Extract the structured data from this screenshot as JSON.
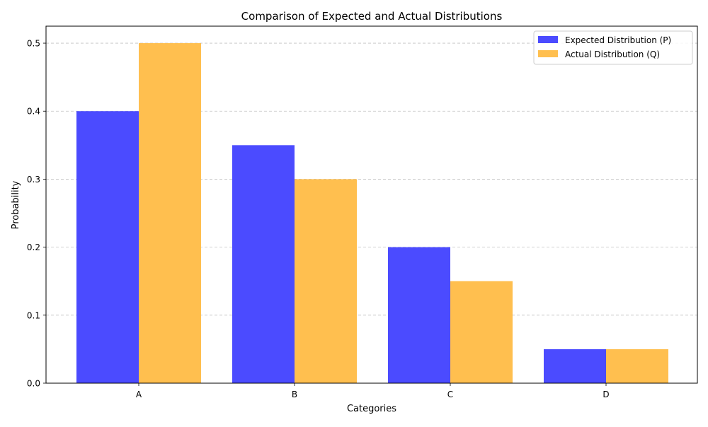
{
  "chart_data": {
    "type": "bar",
    "title": "Comparison of Expected and Actual Distributions",
    "xlabel": "Categories",
    "ylabel": "Probability",
    "categories": [
      "A",
      "B",
      "C",
      "D"
    ],
    "series": [
      {
        "name": "Expected Distribution (P)",
        "values": [
          0.4,
          0.35,
          0.2,
          0.05
        ],
        "color": "#4b4bff"
      },
      {
        "name": "Actual Distribution (Q)",
        "values": [
          0.5,
          0.3,
          0.15,
          0.05
        ],
        "color": "#ffbf4f"
      }
    ],
    "ylim": [
      0,
      0.525
    ],
    "yticks": [
      "0.0",
      "0.1",
      "0.2",
      "0.3",
      "0.4",
      "0.5"
    ],
    "grid": "y-dashed",
    "legend_position": "top-right"
  }
}
